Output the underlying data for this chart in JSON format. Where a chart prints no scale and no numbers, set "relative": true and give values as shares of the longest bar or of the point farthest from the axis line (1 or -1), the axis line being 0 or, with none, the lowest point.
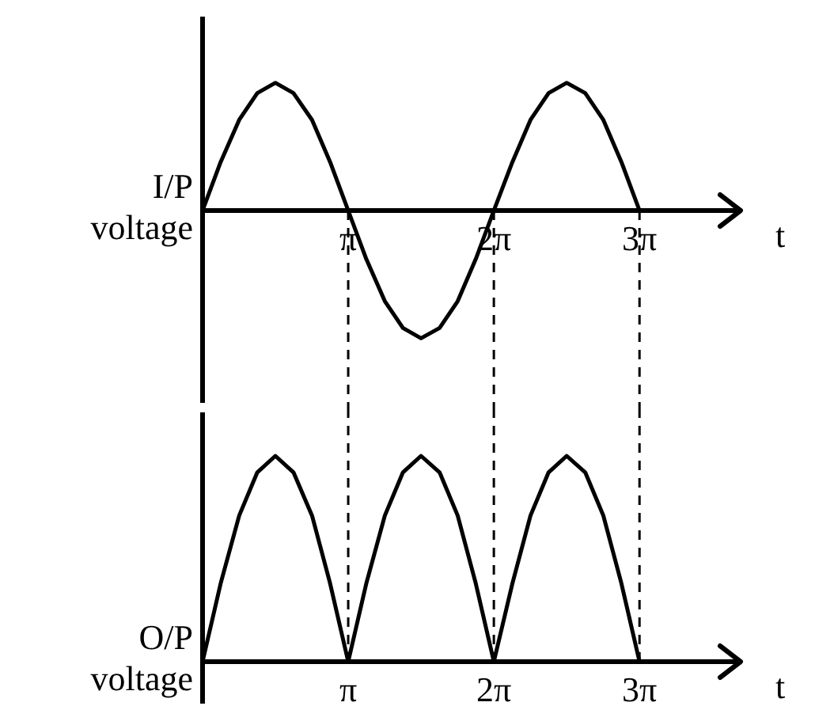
{
  "chart_data": [
    {
      "type": "line",
      "relative": true,
      "ylabel": "I/P voltage",
      "xlabel": "t",
      "xlim": [
        0,
        11.6
      ],
      "xticks": [
        {
          "value": 3.14,
          "label": "π"
        },
        {
          "value": 6.28,
          "label": "2π"
        },
        {
          "value": 9.42,
          "label": "3π"
        }
      ],
      "grid": false,
      "legend": false,
      "marker": "none",
      "line_style": "solid",
      "x": [
        0,
        0.39,
        0.79,
        1.18,
        1.57,
        1.96,
        2.36,
        2.75,
        3.14,
        3.53,
        3.93,
        4.32,
        4.71,
        5.11,
        5.5,
        5.89,
        6.28,
        6.68,
        7.07,
        7.46,
        7.85,
        8.25,
        8.64,
        9.03,
        9.42
      ],
      "series": [
        {
          "color": "#000000",
          "values": [
            0,
            0.38,
            0.71,
            0.92,
            1,
            0.92,
            0.71,
            0.38,
            0,
            -0.38,
            -0.71,
            -0.92,
            -1,
            -0.92,
            -0.71,
            -0.38,
            0,
            0.38,
            0.71,
            0.92,
            1,
            0.92,
            0.71,
            0.38,
            0
          ]
        }
      ],
      "ref_lines": [
        {
          "axis": "x",
          "value": 3.14,
          "line_style": "dashed"
        },
        {
          "axis": "x",
          "value": 6.28,
          "line_style": "dashed"
        },
        {
          "axis": "x",
          "value": 9.42,
          "line_style": "dashed"
        }
      ]
    },
    {
      "type": "line",
      "relative": true,
      "ylabel": "O/P voltage",
      "xlabel": "t",
      "xlim": [
        0,
        11.6
      ],
      "xticks": [
        {
          "value": 3.14,
          "label": "π"
        },
        {
          "value": 6.28,
          "label": "2π"
        },
        {
          "value": 9.42,
          "label": "3π"
        }
      ],
      "grid": false,
      "legend": false,
      "marker": "none",
      "line_style": "solid",
      "x": [
        0,
        0.39,
        0.79,
        1.18,
        1.57,
        1.96,
        2.36,
        2.75,
        3.14,
        3.53,
        3.93,
        4.32,
        4.71,
        5.11,
        5.5,
        5.89,
        6.28,
        6.68,
        7.07,
        7.46,
        7.85,
        8.25,
        8.64,
        9.03,
        9.42
      ],
      "series": [
        {
          "color": "#000000",
          "values": [
            0,
            0.38,
            0.71,
            0.92,
            1,
            0.92,
            0.71,
            0.38,
            0,
            0.38,
            0.71,
            0.92,
            1,
            0.92,
            0.71,
            0.38,
            0,
            0.38,
            0.71,
            0.92,
            1,
            0.92,
            0.71,
            0.38,
            0
          ]
        }
      ],
      "ref_lines": [
        {
          "axis": "x",
          "value": 3.14,
          "line_style": "dashed"
        },
        {
          "axis": "x",
          "value": 6.28,
          "line_style": "dashed"
        },
        {
          "axis": "x",
          "value": 9.42,
          "line_style": "dashed"
        }
      ]
    }
  ]
}
